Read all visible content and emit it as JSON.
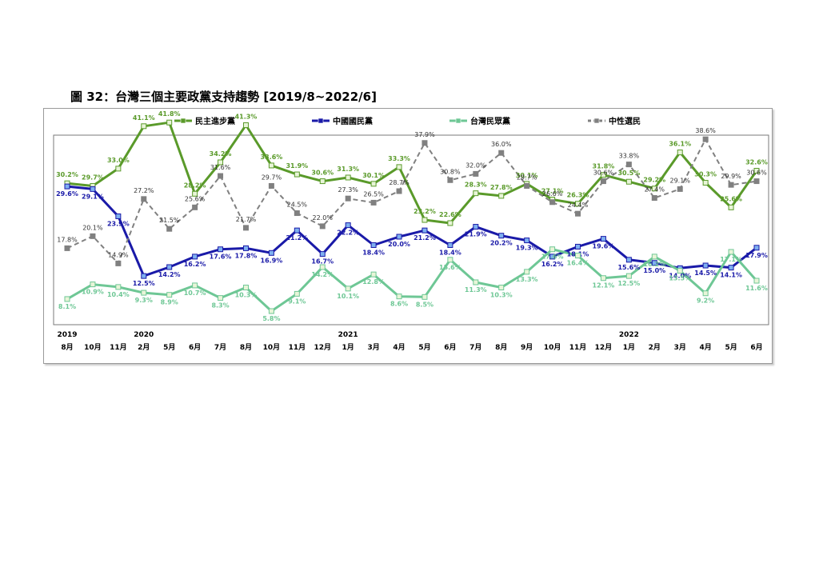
{
  "title": "圖 32：台灣三個主要政黨支持趨勢  [2019/8~2022/6]",
  "chart_data": {
    "type": "line",
    "title": "圖 32：台灣三個主要政黨支持趨勢  [2019/8~2022/6]",
    "xlabel": "",
    "ylabel": "",
    "ylim": [
      0,
      45
    ],
    "grid": false,
    "legend": "top",
    "categories": [
      "2019/8",
      "2019/10",
      "2019/11",
      "2020/2",
      "2020/5",
      "2020/6",
      "2020/7",
      "2020/8",
      "2020/10",
      "2020/11",
      "2020/12",
      "2021/1",
      "2021/3",
      "2021/4",
      "2021/5",
      "2021/6",
      "2021/7",
      "2021/8",
      "2021/9",
      "2021/10",
      "2021/11",
      "2021/12",
      "2022/1",
      "2022/2",
      "2022/3",
      "2022/4",
      "2022/5",
      "2022/6"
    ],
    "month_labels": [
      "8月",
      "10月",
      "11月",
      "2月",
      "5月",
      "6月",
      "7月",
      "8月",
      "10月",
      "11月",
      "12月",
      "1月",
      "3月",
      "4月",
      "5月",
      "6月",
      "7月",
      "8月",
      "9月",
      "10月",
      "11月",
      "12月",
      "1月",
      "2月",
      "3月",
      "4月",
      "5月",
      "6月"
    ],
    "year_labels": [
      {
        "index": 0,
        "label": "2019"
      },
      {
        "index": 3,
        "label": "2020"
      },
      {
        "index": 11,
        "label": "2021"
      },
      {
        "index": 22,
        "label": "2022"
      }
    ],
    "series": [
      {
        "name": "民主進步黨",
        "color": "#5a9a2a",
        "dashed": false,
        "values": [
          30.2,
          29.7,
          33.0,
          41.1,
          41.8,
          28.2,
          34.2,
          41.3,
          33.6,
          31.9,
          30.6,
          31.3,
          30.1,
          33.3,
          23.2,
          22.6,
          28.3,
          27.8,
          30.1,
          27.1,
          26.3,
          31.8,
          30.5,
          29.2,
          36.1,
          30.3,
          25.6,
          32.6
        ]
      },
      {
        "name": "中國國民黨",
        "color": "#1a1aa8",
        "dashed": false,
        "values": [
          29.6,
          29.1,
          23.9,
          12.5,
          14.2,
          16.2,
          17.6,
          17.8,
          16.9,
          21.2,
          16.7,
          22.2,
          18.4,
          20.0,
          21.2,
          18.4,
          21.9,
          20.2,
          19.3,
          16.2,
          18.1,
          19.6,
          15.6,
          15.0,
          14.0,
          14.5,
          14.1,
          17.9
        ]
      },
      {
        "name": "台灣民眾黨",
        "color": "#6ec795",
        "dashed": false,
        "values": [
          8.1,
          10.9,
          10.4,
          9.3,
          8.9,
          10.7,
          8.3,
          10.3,
          5.8,
          9.1,
          14.2,
          10.1,
          12.8,
          8.6,
          8.5,
          15.6,
          11.3,
          10.3,
          13.3,
          17.6,
          16.4,
          12.1,
          12.5,
          16.2,
          13.5,
          9.2,
          17.1,
          11.6
        ]
      },
      {
        "name": "中性選民",
        "color": "#808080",
        "dashed": true,
        "values": [
          17.8,
          20.1,
          14.9,
          27.2,
          21.5,
          25.6,
          31.6,
          21.7,
          29.7,
          24.5,
          22.0,
          27.3,
          26.5,
          28.7,
          37.9,
          30.8,
          32.0,
          36.0,
          29.7,
          26.6,
          24.4,
          30.6,
          33.8,
          27.4,
          29.1,
          38.6,
          29.9,
          30.6
        ]
      }
    ]
  }
}
